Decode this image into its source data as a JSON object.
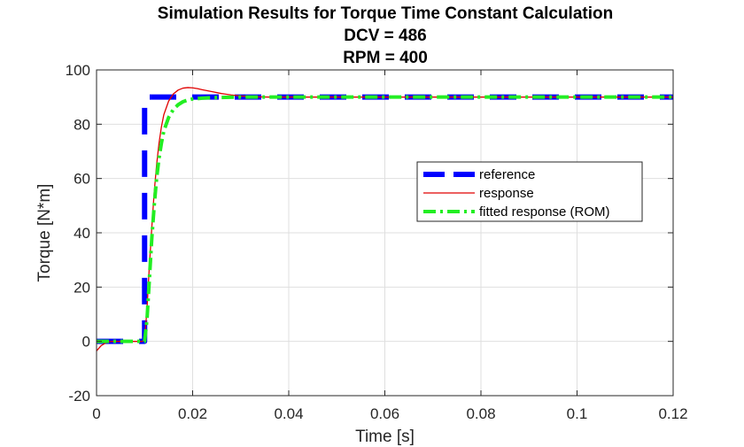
{
  "chart_data": {
    "type": "line",
    "title": [
      "Simulation Results for Torque Time Constant Calculation",
      "DCV = 486",
      "RPM = 400"
    ],
    "xlabel": "Time [s]",
    "ylabel": "Torque [N*m]",
    "xlim": [
      0,
      0.12
    ],
    "ylim": [
      -20,
      100
    ],
    "xticks": [
      0,
      0.02,
      0.04,
      0.06,
      0.08,
      0.1,
      0.12
    ],
    "xtick_labels": [
      "0",
      "0.02",
      "0.04",
      "0.06",
      "0.08",
      "0.1",
      "0.12"
    ],
    "yticks": [
      -20,
      0,
      20,
      40,
      60,
      80,
      100
    ],
    "ytick_labels": [
      "-20",
      "0",
      "20",
      "40",
      "60",
      "80",
      "100"
    ],
    "grid": true,
    "legend_position": "right",
    "series": [
      {
        "name": "reference",
        "color": "#0000ff",
        "style": "dashed-thick",
        "x": [
          0,
          0.01,
          0.01,
          0.12
        ],
        "y": [
          0,
          0,
          90,
          90
        ]
      },
      {
        "name": "response",
        "color": "#e00000",
        "style": "solid",
        "x": [
          0,
          0.0005,
          0.001,
          0.002,
          0.003,
          0.004,
          0.006,
          0.008,
          0.0095,
          0.01,
          0.0105,
          0.011,
          0.0115,
          0.012,
          0.0125,
          0.013,
          0.0135,
          0.014,
          0.015,
          0.016,
          0.017,
          0.018,
          0.019,
          0.02,
          0.021,
          0.022,
          0.024,
          0.026,
          0.028,
          0.03,
          0.033,
          0.036,
          0.04,
          0.05,
          0.06,
          0.07,
          0.08,
          0.09,
          0.1,
          0.11,
          0.12
        ],
        "y": [
          -3.5,
          -2.5,
          -1.5,
          -0.5,
          0,
          0,
          0,
          0,
          0,
          0.5,
          12,
          28,
          42,
          55,
          65,
          73,
          79,
          83.5,
          88.5,
          91.2,
          92.6,
          93.3,
          93.5,
          93.4,
          93.1,
          92.7,
          92.0,
          91.3,
          90.8,
          90.4,
          90.1,
          90.0,
          90,
          90,
          90,
          90,
          90,
          90,
          90,
          90,
          90
        ]
      },
      {
        "name": "fitted response (ROM)",
        "color": "#22ee22",
        "style": "dash-dot",
        "x": [
          0,
          0.002,
          0.004,
          0.006,
          0.008,
          0.01,
          0.0105,
          0.011,
          0.0115,
          0.012,
          0.0125,
          0.013,
          0.0135,
          0.014,
          0.015,
          0.016,
          0.017,
          0.018,
          0.019,
          0.02,
          0.022,
          0.024,
          0.027,
          0.03,
          0.035,
          0.04,
          0.05,
          0.06,
          0.07,
          0.08,
          0.09,
          0.1,
          0.11,
          0.12
        ],
        "y": [
          0,
          0,
          0,
          0,
          0,
          0,
          8,
          23,
          38,
          50,
          60,
          67.5,
          73,
          77.5,
          82.5,
          85.5,
          87.2,
          88.3,
          88.9,
          89.3,
          89.6,
          89.8,
          89.9,
          90,
          90,
          90,
          90,
          90,
          90,
          90,
          90,
          90,
          90,
          90
        ]
      }
    ]
  }
}
